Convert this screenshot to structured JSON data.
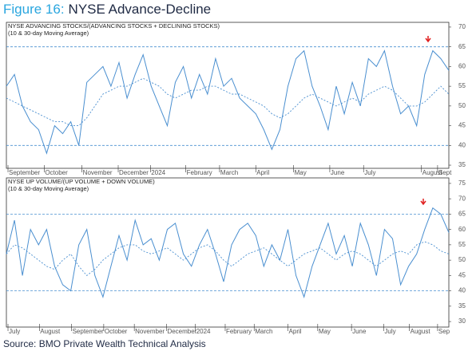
{
  "figure_label": "Figure 16:",
  "title": "NYSE Advance-Decline",
  "source": "Source: BMO Private Wealth Technical Analysis",
  "chart_data": [
    {
      "type": "line",
      "title": "NYSE ADVANCING STOCKS/(ADVANCING STOCKS + DECLINING STOCKS)",
      "subtitle": "(10 & 30-day Moving Average)",
      "series": [
        {
          "color": "#4a8fd0",
          "dashed": false,
          "values": [
            55,
            58,
            50,
            46,
            44,
            38,
            45,
            43,
            46,
            40,
            56,
            58,
            60,
            55,
            61,
            52,
            58,
            63,
            55,
            50,
            45,
            56,
            60,
            52,
            58,
            53,
            62,
            55,
            57,
            52,
            50,
            48,
            44,
            39,
            44,
            55,
            62,
            64,
            55,
            50,
            44,
            55,
            48,
            56,
            50,
            62,
            60,
            64,
            55,
            48,
            50,
            45,
            58,
            64,
            62,
            59
          ]
        },
        {
          "color": "#4a8fd0",
          "dashed": true,
          "values": [
            52,
            51,
            50,
            49,
            48,
            47,
            46,
            46,
            45,
            45,
            47,
            50,
            53,
            54,
            55,
            55,
            56,
            57,
            56,
            55,
            53,
            52,
            53,
            54,
            54,
            55,
            55,
            54,
            53,
            53,
            52,
            51,
            50,
            48,
            47,
            48,
            50,
            52,
            53,
            52,
            51,
            50,
            51,
            52,
            51,
            53,
            54,
            55,
            54,
            52,
            50,
            50,
            51,
            53,
            55,
            53
          ]
        }
      ],
      "hlines": [
        65,
        40
      ],
      "hline_color": "#4a8fd0",
      "xlim": [
        0,
        55
      ],
      "xticks": [
        {
          "value": 0.2,
          "label": "September"
        },
        {
          "value": 4.7,
          "label": "October"
        },
        {
          "value": 9.4,
          "label": "November"
        },
        {
          "value": 13.9,
          "label": "December"
        },
        {
          "value": 17.9,
          "label": "2024"
        },
        {
          "value": 22.3,
          "label": "February"
        },
        {
          "value": 26.5,
          "label": "March"
        },
        {
          "value": 31,
          "label": "April"
        },
        {
          "value": 35.7,
          "label": "May"
        },
        {
          "value": 40.2,
          "label": "June"
        },
        {
          "value": 44.4,
          "label": "July"
        },
        {
          "value": 51.6,
          "label": "August"
        },
        {
          "value": 53.6,
          "label": "Sept"
        }
      ],
      "ylim": [
        34.2,
        71.2
      ],
      "yticks": [
        35,
        40,
        45,
        50,
        55,
        60,
        65,
        70
      ]
    },
    {
      "type": "line",
      "title": "NYSE UP VOLUME/(UP VOLUME + DOWN VOLUME)",
      "subtitle": "(10 & 30-day Moving Average)",
      "series": [
        {
          "color": "#4a8fd0",
          "dashed": false,
          "values": [
            52,
            63,
            45,
            60,
            55,
            60,
            48,
            42,
            40,
            55,
            60,
            45,
            38,
            48,
            58,
            50,
            63,
            55,
            57,
            50,
            60,
            62,
            52,
            48,
            55,
            60,
            52,
            43,
            55,
            60,
            62,
            58,
            48,
            55,
            50,
            60,
            45,
            38,
            48,
            55,
            62,
            52,
            58,
            48,
            62,
            55,
            45,
            60,
            57,
            42,
            48,
            52,
            60,
            67,
            65,
            59
          ]
        },
        {
          "color": "#4a8fd0",
          "dashed": true,
          "values": [
            52,
            55,
            54,
            52,
            50,
            48,
            47,
            50,
            52,
            48,
            45,
            47,
            50,
            52,
            54,
            55,
            55,
            53,
            52,
            53,
            54,
            52,
            50,
            52,
            54,
            55,
            53,
            50,
            48,
            50,
            52,
            53,
            54,
            52,
            50,
            48,
            50,
            52,
            53,
            54,
            52,
            50,
            52,
            53,
            52,
            50,
            48,
            50,
            52,
            53,
            52,
            55,
            56,
            55,
            53,
            52
          ]
        }
      ],
      "hlines": [
        65,
        40
      ],
      "hline_color": "#4a8fd0",
      "xlim": [
        0,
        55
      ],
      "xticks": [
        {
          "value": 0.2,
          "label": "July"
        },
        {
          "value": 4.1,
          "label": "August"
        },
        {
          "value": 8.1,
          "label": "September"
        },
        {
          "value": 12.1,
          "label": "October"
        },
        {
          "value": 15.9,
          "label": "November"
        },
        {
          "value": 19.9,
          "label": "December"
        },
        {
          "value": 23.5,
          "label": "2024"
        },
        {
          "value": 27.2,
          "label": "February"
        },
        {
          "value": 30.8,
          "label": "March"
        },
        {
          "value": 35,
          "label": "April"
        },
        {
          "value": 38.7,
          "label": "May"
        },
        {
          "value": 42.9,
          "label": "June"
        },
        {
          "value": 46.9,
          "label": "July"
        },
        {
          "value": 50.1,
          "label": "August"
        },
        {
          "value": 53.6,
          "label": "Sep"
        }
      ],
      "ylim": [
        28.2,
        76.8
      ],
      "yticks": [
        30,
        35,
        40,
        45,
        50,
        55,
        60,
        65,
        70,
        75
      ]
    }
  ]
}
